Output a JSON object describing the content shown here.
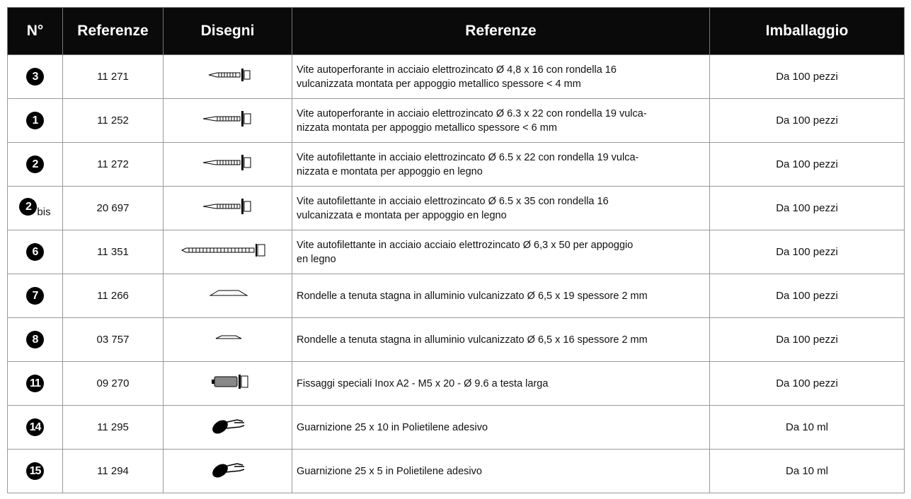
{
  "table": {
    "header": [
      "N°",
      "Referenze",
      "Disegni",
      "Referenze",
      "Imballaggio"
    ],
    "rows": [
      {
        "no": "3",
        "ref": "11 271",
        "desc": [
          "Vite autoperforante in acciaio elettrozincato Ø  4,8 x 16 con rondella 16",
          "vulcanizzata montata per appoggio metallico spessore < 4 mm"
        ],
        "pack": "Da 100 pezzi"
      },
      {
        "no": "1",
        "ref": "11 252",
        "desc": [
          "Vite autoperforante in acciaio elettrozincato Ø 6.3 x 22 con rondella 19 vulca-",
          "nizzata montata per appoggio metallico spessore < 6 mm"
        ],
        "pack": "Da 100 pezzi"
      },
      {
        "no": "2",
        "ref": "11 272",
        "desc": [
          "Vite autofilettante in acciaio elettrozincato Ø  6.5 x 22 con rondella  19 vulca-",
          "nizzata e montata per appoggio en legno"
        ],
        "pack": "Da 100 pezzi"
      },
      {
        "no": "2",
        "suffix": "bis",
        "ref": "20 697",
        "desc": [
          "Vite autofilettante in acciaio elettrozincato Ø  6.5 x 35 con rondella  16",
          "vulcanizzata e montata per appoggio en legno"
        ],
        "pack": "Da 100 pezzi"
      },
      {
        "no": "6",
        "ref": "11 351",
        "desc": [
          "Vite autofilettante in acciaio acciaio elettrozincato Ø 6,3 x 50 per appoggio",
          "en legno"
        ],
        "pack": "Da 100 pezzi"
      },
      {
        "no": "7",
        "ref": "11 266",
        "desc": [
          "Rondelle a tenuta stagna in alluminio vulcanizzato Ø 6,5 x 19 spessore 2 mm"
        ],
        "pack": "Da 100 pezzi"
      },
      {
        "no": "8",
        "ref": "03 757",
        "desc": [
          "Rondelle a tenuta stagna in alluminio vulcanizzato Ø 6,5 x 16 spessore 2 mm"
        ],
        "pack": "Da 100 pezzi"
      },
      {
        "no": "11",
        "ref": "09 270",
        "desc": [
          "Fissaggi speciali Inox A2 - M5 x 20 - Ø 9.6 a testa larga"
        ],
        "pack": "Da 100 pezzi"
      },
      {
        "no": "14",
        "ref": "11 295",
        "desc": [
          "Guarnizione 25 x 10 in Polietilene adesivo"
        ],
        "pack": "Da 10 ml"
      },
      {
        "no": "15",
        "ref": "11 294",
        "desc": [
          "Guarnizione 25 x 5 in Polietilene adesivo"
        ],
        "pack": "Da 10 ml"
      }
    ]
  }
}
